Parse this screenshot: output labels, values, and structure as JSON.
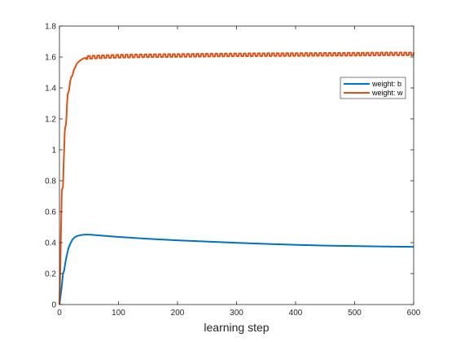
{
  "chart_data": {
    "type": "line",
    "title": "",
    "xlabel": "learning step",
    "ylabel": "",
    "xlim": [
      0,
      600
    ],
    "ylim": [
      0,
      1.8
    ],
    "x_ticks": [
      0,
      100,
      200,
      300,
      400,
      500,
      600
    ],
    "y_ticks": [
      0,
      0.2,
      0.4,
      0.6,
      0.8,
      1,
      1.2,
      1.4,
      1.6,
      1.8
    ],
    "x_tick_labels": [
      "0",
      "100",
      "200",
      "300",
      "400",
      "500",
      "600"
    ],
    "y_tick_labels": [
      "0",
      "0.2",
      "0.4",
      "0.6",
      "0.8",
      "1",
      "1.2",
      "1.4",
      "1.6",
      "1.8"
    ],
    "grid": false,
    "legend_position": "top-right",
    "series": [
      {
        "name": "weight: b",
        "color": "#0072BD",
        "points": [
          [
            0,
            0
          ],
          [
            2,
            0.06
          ],
          [
            4,
            0.12
          ],
          [
            6,
            0.2
          ],
          [
            8,
            0.22
          ],
          [
            10,
            0.27
          ],
          [
            12,
            0.31
          ],
          [
            15,
            0.36
          ],
          [
            18,
            0.39
          ],
          [
            22,
            0.42
          ],
          [
            26,
            0.435
          ],
          [
            30,
            0.443
          ],
          [
            35,
            0.448
          ],
          [
            40,
            0.451
          ],
          [
            45,
            0.452
          ],
          [
            50,
            0.452
          ],
          [
            60,
            0.449
          ],
          [
            80,
            0.443
          ],
          [
            100,
            0.437
          ],
          [
            150,
            0.425
          ],
          [
            200,
            0.415
          ],
          [
            250,
            0.407
          ],
          [
            300,
            0.399
          ],
          [
            350,
            0.392
          ],
          [
            400,
            0.386
          ],
          [
            450,
            0.381
          ],
          [
            500,
            0.378
          ],
          [
            550,
            0.375
          ],
          [
            600,
            0.373
          ]
        ]
      },
      {
        "name": "weight: w",
        "color": "#D95319",
        "points": [
          [
            0,
            0
          ],
          [
            1,
            0.15
          ],
          [
            2,
            0.35
          ],
          [
            3,
            0.55
          ],
          [
            4,
            0.74
          ],
          [
            5,
            0.75
          ],
          [
            6,
            0.76
          ],
          [
            7,
            0.9
          ],
          [
            8,
            1.0
          ],
          [
            9,
            1.12
          ],
          [
            10,
            1.15
          ],
          [
            11,
            1.16
          ],
          [
            12,
            1.22
          ],
          [
            13,
            1.3
          ],
          [
            14,
            1.36
          ],
          [
            15,
            1.37
          ],
          [
            16,
            1.38
          ],
          [
            18,
            1.44
          ],
          [
            20,
            1.47
          ],
          [
            22,
            1.48
          ],
          [
            24,
            1.51
          ],
          [
            26,
            1.53
          ],
          [
            28,
            1.545
          ],
          [
            30,
            1.56
          ],
          [
            33,
            1.57
          ],
          [
            36,
            1.58
          ],
          [
            40,
            1.59
          ],
          [
            45,
            1.595
          ],
          [
            50,
            1.598
          ],
          [
            60,
            1.6
          ],
          [
            100,
            1.605
          ],
          [
            150,
            1.608
          ],
          [
            200,
            1.61
          ],
          [
            250,
            1.612
          ],
          [
            300,
            1.614
          ],
          [
            350,
            1.615
          ],
          [
            400,
            1.616
          ],
          [
            450,
            1.617
          ],
          [
            500,
            1.618
          ],
          [
            550,
            1.62
          ],
          [
            600,
            1.62
          ]
        ],
        "oscillation_amplitude": 0.018,
        "oscillation_period": 8
      }
    ]
  }
}
